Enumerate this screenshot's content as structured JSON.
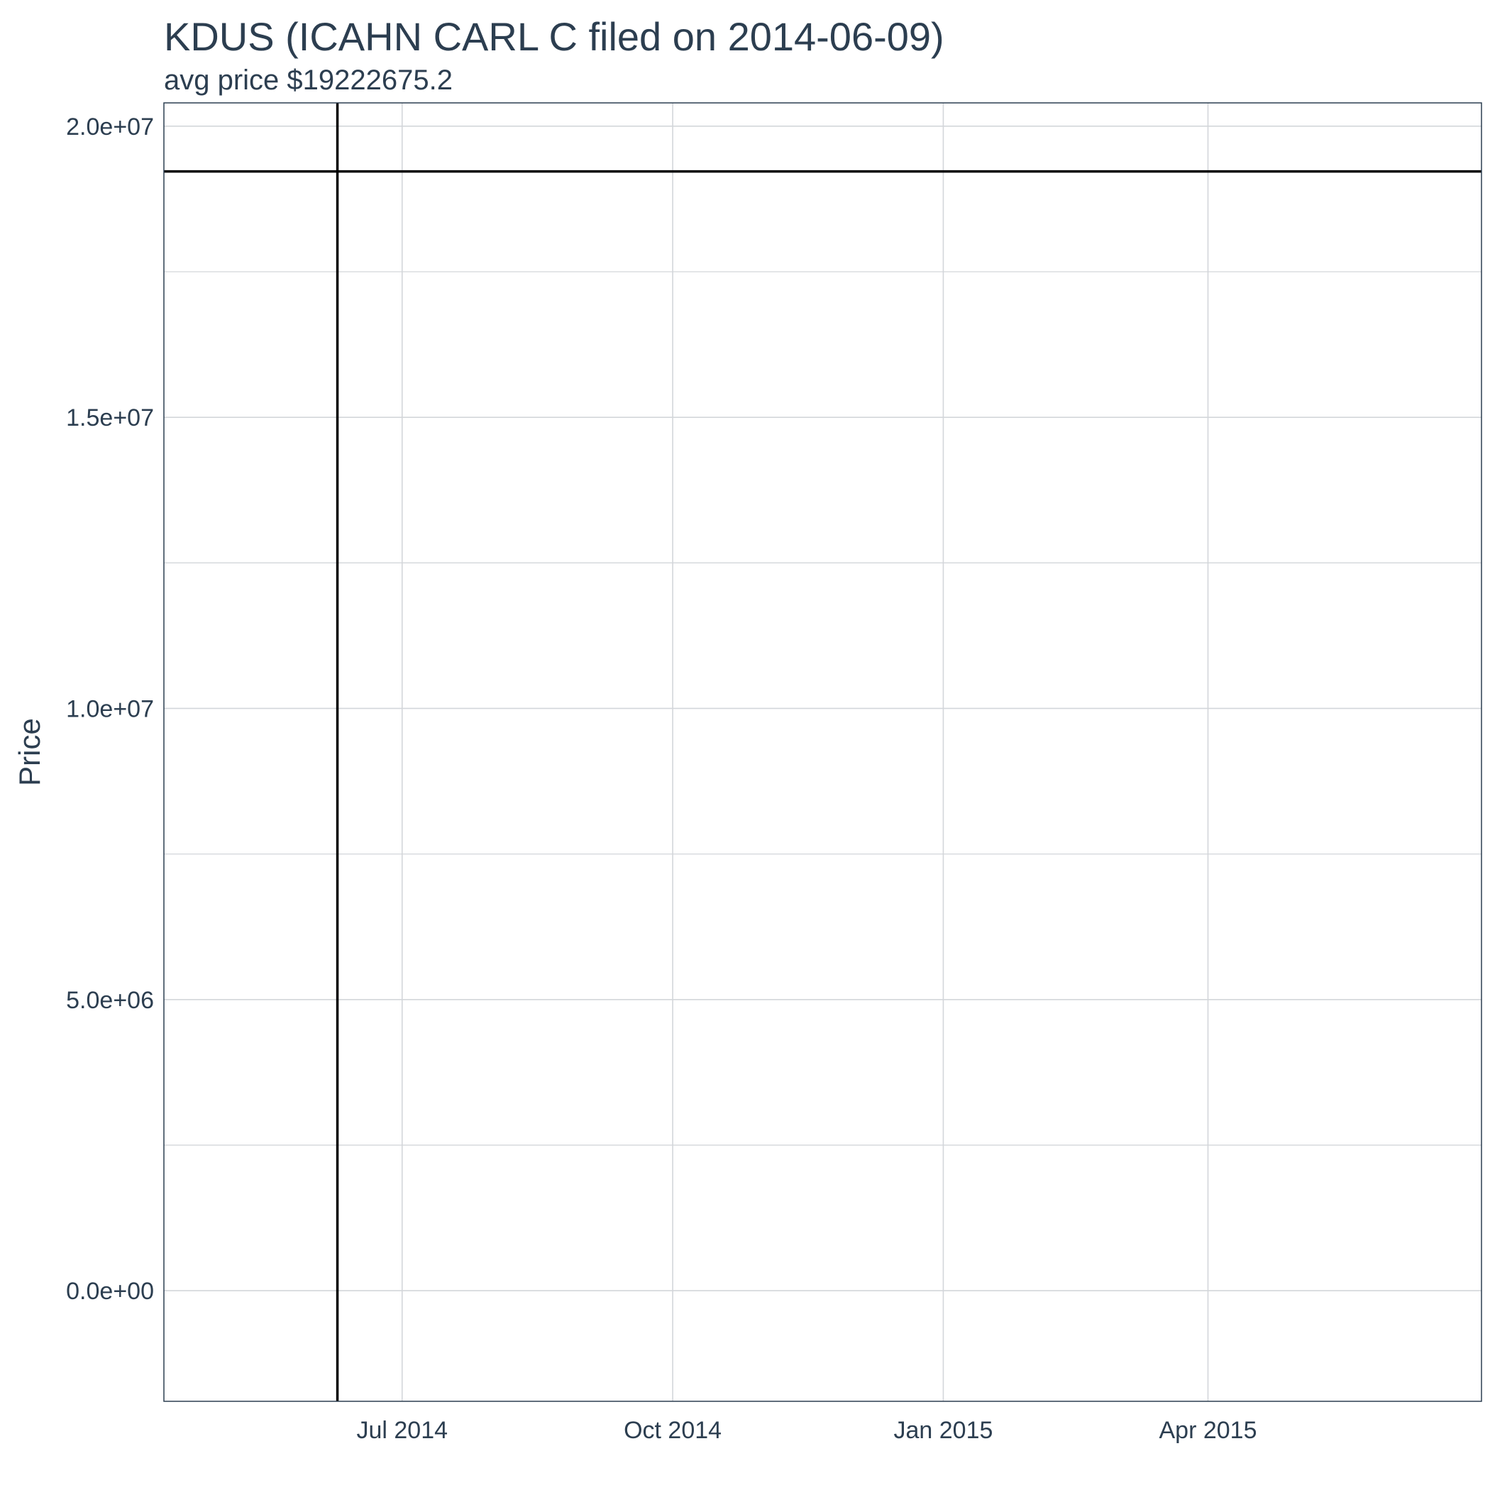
{
  "chart_data": {
    "type": "line",
    "title": "KDUS (ICAHN CARL C filed on 2014-06-09)",
    "subtitle": "avg price $19222675.2",
    "xlabel": "",
    "ylabel": "Price",
    "x_type": "date",
    "xlim": [
      "2014-04-11",
      "2015-07-03"
    ],
    "ylim": [
      -1900000,
      20400000
    ],
    "x_ticks": [
      {
        "value": "2014-07-01",
        "label": "Jul 2014"
      },
      {
        "value": "2014-10-01",
        "label": "Oct 2014"
      },
      {
        "value": "2015-01-01",
        "label": "Jan 2015"
      },
      {
        "value": "2015-04-01",
        "label": "Apr 2015"
      }
    ],
    "y_ticks": [
      {
        "value": 0,
        "label": "0.0e+00"
      },
      {
        "value": 5000000,
        "label": "5.0e+06"
      },
      {
        "value": 10000000,
        "label": "1.0e+07"
      },
      {
        "value": 15000000,
        "label": "1.5e+07"
      },
      {
        "value": 20000000,
        "label": "2.0e+07"
      }
    ],
    "grid": true,
    "filing_date": "2014-06-09",
    "avg_price": 19222675.2,
    "colors": {
      "reference_lines": "#000000",
      "grid": "#d3d6da",
      "border": "#2c3e50",
      "text": "#2c3e50"
    }
  }
}
